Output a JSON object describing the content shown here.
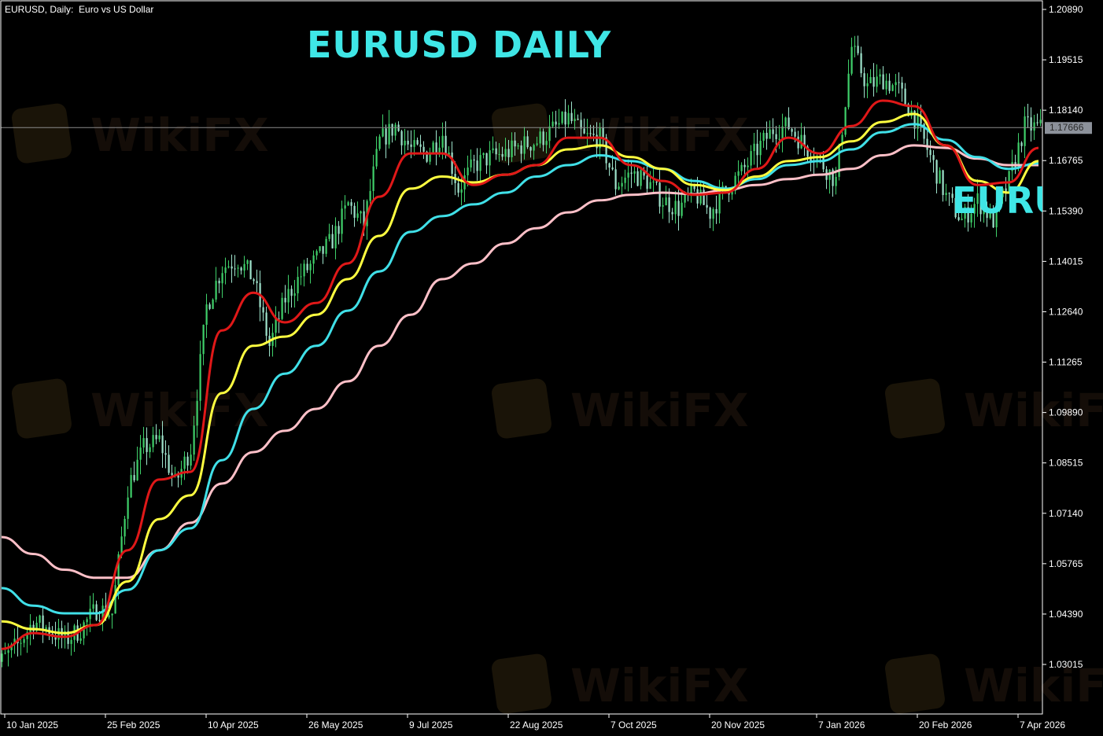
{
  "header": {
    "symbol_label": "EURUSD, Daily:  Euro vs US Dollar"
  },
  "overlay": {
    "title": "EURUSD DAILY",
    "cut_text": "EURUSD DAILY"
  },
  "watermark": "WikiFX",
  "colors": {
    "background": "#000000",
    "bull_candle": "#3fd06a",
    "bear_candle": "#9fe3cc",
    "axis": "#ffffff",
    "title": "#3fe6e6",
    "current_price_line": "#8a8a8a",
    "current_price_box": "#8c919a"
  },
  "chart_data": {
    "type": "candlestick",
    "title": "",
    "xlabel": "",
    "ylabel": "",
    "ylim": [
      1.017,
      1.2115
    ],
    "grid": false,
    "y_ticks": [
      "1.20890",
      "1.19515",
      "1.18140",
      "1.16765",
      "1.15390",
      "1.14015",
      "1.12640",
      "1.11265",
      "1.09890",
      "1.08515",
      "1.07140",
      "1.05765",
      "1.04390",
      "1.03015"
    ],
    "x_ticks": [
      {
        "date": "2025-01-10",
        "label": "10 Jan 2025"
      },
      {
        "date": "2025-02-25",
        "label": "25 Feb 2025"
      },
      {
        "date": "2025-04-10",
        "label": "10 Apr 2025"
      },
      {
        "date": "2025-05-26",
        "label": "26 May 2025"
      },
      {
        "date": "2025-07-09",
        "label": "9 Jul 2025"
      },
      {
        "date": "2025-08-22",
        "label": "22 Aug 2025"
      },
      {
        "date": "2025-10-07",
        "label": "7 Oct 2025"
      },
      {
        "date": "2025-11-20",
        "label": "20 Nov 2025"
      },
      {
        "date": "2026-01-07",
        "label": "7 Jan 2026"
      },
      {
        "date": "2026-02-20",
        "label": "20 Feb 2026"
      },
      {
        "date": "2026-04-07",
        "label": "7 Apr 2026"
      }
    ],
    "current_price": "1.17666",
    "weekly_dates": [
      "2025-01-09",
      "2025-01-16",
      "2025-01-23",
      "2025-01-30",
      "2025-02-06",
      "2025-02-13",
      "2025-02-20",
      "2025-02-27",
      "2025-03-06",
      "2025-03-13",
      "2025-03-20",
      "2025-03-27",
      "2025-04-03",
      "2025-04-10",
      "2025-04-17",
      "2025-04-24",
      "2025-05-01",
      "2025-05-08",
      "2025-05-15",
      "2025-05-22",
      "2025-05-29",
      "2025-06-05",
      "2025-06-12",
      "2025-06-19",
      "2025-06-26",
      "2025-07-03",
      "2025-07-10",
      "2025-07-17",
      "2025-07-24",
      "2025-07-31",
      "2025-08-07",
      "2025-08-14",
      "2025-08-21",
      "2025-08-28",
      "2025-09-04",
      "2025-09-11",
      "2025-09-18",
      "2025-09-25",
      "2025-10-02",
      "2025-10-09",
      "2025-10-16",
      "2025-10-23",
      "2025-10-30",
      "2025-11-06",
      "2025-11-13",
      "2025-11-20",
      "2025-11-27",
      "2025-12-04",
      "2025-12-11",
      "2025-12-18",
      "2025-12-25",
      "2026-01-01",
      "2026-01-08",
      "2026-01-15",
      "2026-01-22",
      "2026-01-29",
      "2026-02-05",
      "2026-02-12",
      "2026-02-19",
      "2026-02-26",
      "2026-03-05",
      "2026-03-12",
      "2026-03-19",
      "2026-03-26",
      "2026-04-02",
      "2026-04-09",
      "2026-04-16"
    ],
    "weekly_close": [
      1.0312,
      1.0355,
      1.0419,
      1.0398,
      1.0366,
      1.0398,
      1.0452,
      1.0441,
      1.0784,
      1.0892,
      1.0913,
      1.0795,
      1.0892,
      1.1278,
      1.1385,
      1.1407,
      1.1353,
      1.1171,
      1.1299,
      1.1364,
      1.1407,
      1.146,
      1.1557,
      1.1503,
      1.1729,
      1.1771,
      1.1707,
      1.1696,
      1.175,
      1.16,
      1.1664,
      1.1686,
      1.1696,
      1.1718,
      1.1729,
      1.1761,
      1.1793,
      1.1739,
      1.1739,
      1.161,
      1.1643,
      1.1621,
      1.1568,
      1.1546,
      1.1589,
      1.1535,
      1.16,
      1.1643,
      1.1707,
      1.1761,
      1.1771,
      1.1718,
      1.1675,
      1.1621,
      1.1986,
      1.1879,
      1.19,
      1.1868,
      1.1793,
      1.1686,
      1.1578,
      1.1514,
      1.1568,
      1.1514,
      1.1621,
      1.1771,
      1.1765
    ],
    "ma_dates": [
      "2025-01-09",
      "2025-01-23",
      "2025-02-06",
      "2025-02-20",
      "2025-03-06",
      "2025-03-20",
      "2025-04-03",
      "2025-04-17",
      "2025-05-01",
      "2025-05-15",
      "2025-05-29",
      "2025-06-12",
      "2025-06-26",
      "2025-07-10",
      "2025-07-24",
      "2025-08-07",
      "2025-08-21",
      "2025-09-04",
      "2025-09-18",
      "2025-10-02",
      "2025-10-16",
      "2025-10-30",
      "2025-11-13",
      "2025-11-27",
      "2025-12-11",
      "2025-12-25",
      "2026-01-08",
      "2026-01-22",
      "2026-02-05",
      "2026-02-19",
      "2026-03-05",
      "2026-03-19",
      "2026-04-02",
      "2026-04-16"
    ],
    "series": [
      {
        "color": "#e01818",
        "values": [
          1.0344,
          1.0387,
          1.0377,
          1.0409,
          1.0613,
          1.0806,
          1.0827,
          1.1213,
          1.1316,
          1.1235,
          1.1288,
          1.1396,
          1.1578,
          1.1696,
          1.1696,
          1.161,
          1.1638,
          1.1664,
          1.1739,
          1.1739,
          1.1664,
          1.1621,
          1.1583,
          1.1589,
          1.1654,
          1.1739,
          1.1696,
          1.1771,
          1.184,
          1.1825,
          1.1718,
          1.161,
          1.1617,
          1.1711
        ]
      },
      {
        "color": "#ffff40",
        "values": [
          1.0419,
          1.0398,
          1.0387,
          1.0409,
          1.0528,
          1.0698,
          1.0763,
          1.1042,
          1.1171,
          1.1196,
          1.1256,
          1.1353,
          1.1471,
          1.16,
          1.1633,
          1.1617,
          1.1638,
          1.1664,
          1.1707,
          1.1718,
          1.1686,
          1.1654,
          1.161,
          1.1596,
          1.1633,
          1.1675,
          1.1686,
          1.1729,
          1.1782,
          1.1804,
          1.1718,
          1.1621,
          1.1589,
          1.1675
        ]
      },
      {
        "color": "#40e0e8",
        "values": [
          1.051,
          1.0462,
          1.0441,
          1.0441,
          1.0505,
          1.0613,
          1.0673,
          1.0859,
          1.0999,
          1.1095,
          1.1171,
          1.1267,
          1.1374,
          1.1482,
          1.1525,
          1.1557,
          1.1589,
          1.1633,
          1.1664,
          1.1691,
          1.1675,
          1.1654,
          1.1621,
          1.16,
          1.1626,
          1.1664,
          1.1675,
          1.1707,
          1.1754,
          1.1776,
          1.1733,
          1.1686,
          1.1654,
          1.1669
        ]
      },
      {
        "color": "#ffc0c8",
        "values": [
          1.0649,
          1.0603,
          1.056,
          1.0538,
          1.0538,
          1.0613,
          1.0688,
          1.0795,
          1.0881,
          1.0939,
          1.0999,
          1.1074,
          1.1171,
          1.1256,
          1.1353,
          1.1396,
          1.145,
          1.1492,
          1.1535,
          1.1568,
          1.1583,
          1.1589,
          1.1585,
          1.1596,
          1.161,
          1.1626,
          1.1638,
          1.1654,
          1.1691,
          1.1718,
          1.1711,
          1.1682,
          1.1664,
          1.1664
        ]
      }
    ]
  }
}
